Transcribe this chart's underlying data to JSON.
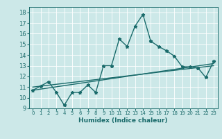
{
  "xlabel": "Humidex (Indice chaleur)",
  "ylabel": "",
  "xlim": [
    -0.5,
    23.5
  ],
  "ylim": [
    9,
    18.5
  ],
  "yticks": [
    9,
    10,
    11,
    12,
    13,
    14,
    15,
    16,
    17,
    18
  ],
  "xticks": [
    0,
    1,
    2,
    3,
    4,
    5,
    6,
    7,
    8,
    9,
    10,
    11,
    12,
    13,
    14,
    15,
    16,
    17,
    18,
    19,
    20,
    21,
    22,
    23
  ],
  "bg_color": "#cce8e8",
  "line_color": "#1a6b6b",
  "grid_color": "#ffffff",
  "series1_x": [
    0,
    1,
    2,
    3,
    4,
    5,
    6,
    7,
    8,
    9,
    10,
    11,
    12,
    13,
    14,
    15,
    16,
    17,
    18,
    19,
    20,
    21,
    22,
    23
  ],
  "series1_y": [
    10.7,
    11.1,
    11.5,
    10.5,
    9.3,
    10.5,
    10.5,
    11.2,
    10.5,
    13.0,
    13.0,
    15.5,
    14.8,
    16.7,
    17.8,
    15.3,
    14.8,
    14.4,
    13.9,
    12.9,
    12.9,
    12.8,
    11.9,
    13.4
  ],
  "series2_x": [
    0,
    23
  ],
  "series2_y": [
    10.7,
    13.2
  ],
  "series3_x": [
    0,
    23
  ],
  "series3_y": [
    11.0,
    13.0
  ],
  "marker_size": 3.5,
  "line_width": 1.0
}
